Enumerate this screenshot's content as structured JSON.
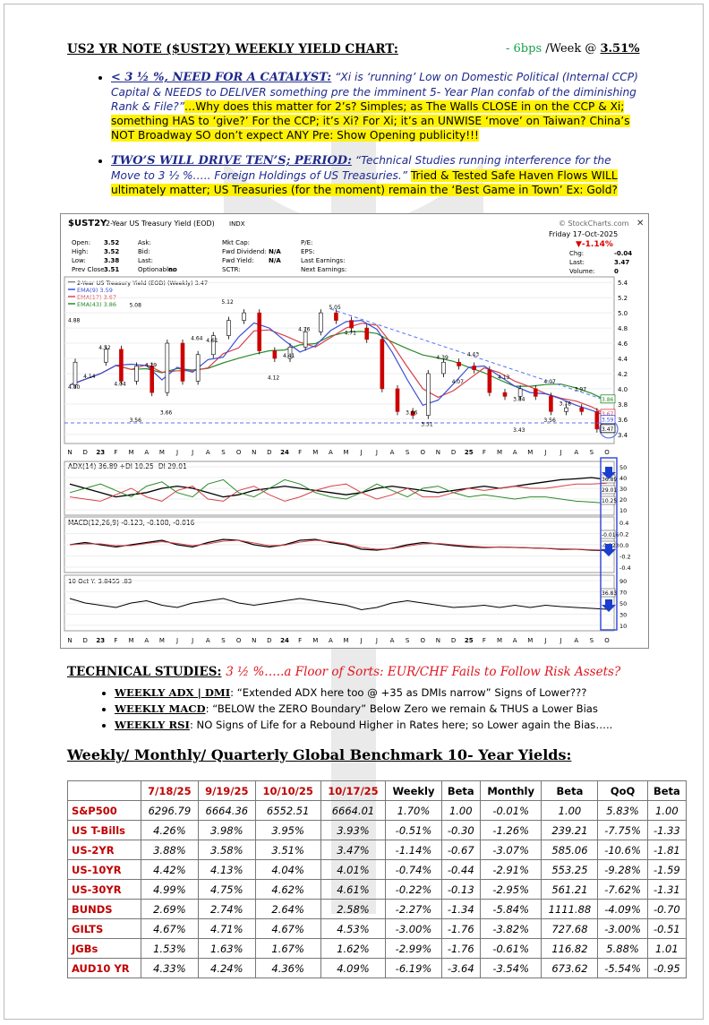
{
  "header": {
    "title": "US2 YR NOTE ($UST2Y) WEEKLY YIELD CHART:",
    "change": "- 6bps",
    "per_week": "/Week @",
    "level": "3.51%"
  },
  "bullets": [
    {
      "head": "< 3 ½ %, NEED FOR A CATALYST:",
      "body": "“Xi is ‘running’ Low on Domestic Political (Internal CCP) Capital & NEEDS to DELIVER something pre the imminent 5- Year Plan confab of the diminishing Rank & File?”",
      "highlight": "…Why does this matter for 2’s? Simples; as The Walls CLOSE in on the CCP & Xi; something HAS to ‘give?’ For the CCP; it’s Xi? For Xi; it’s an UNWISE ‘move’ on Taiwan? China’s NOT Broadway SO don’t expect ANY Pre: Show Opening publicity!!!"
    },
    {
      "head": "TWO’S WILL DRIVE TEN’S; PERIOD:",
      "body": "“Technical Studies running interference for the Move to 3 ½ %….. Foreign Holdings of US Treasuries.”",
      "highlight": "Tried & Tested Safe Haven Flows WILL ultimately matter; US Treasuries (for the moment) remain the ‘Best Game in Town’ Ex: Gold?"
    }
  ],
  "stockchart": {
    "symbol": "$UST2Y",
    "name": "2-Year US Treasury Yield (EOD)",
    "exchange": "INDX",
    "brand": "© StockCharts.com",
    "date": "Friday 17-Oct-2025",
    "pct_change": "▼-1.14%",
    "info_rows": [
      [
        "Open:",
        "3.52",
        "Ask:",
        "",
        "Mkt Cap:",
        "",
        "P/E:",
        ""
      ],
      [
        "High:",
        "3.52",
        "Bid:",
        "",
        "Fwd Dividend:",
        "N/A",
        "EPS:",
        ""
      ],
      [
        "Low:",
        "3.38",
        "Last:",
        "",
        "Fwd Yield:",
        "N/A",
        "Last Earnings:",
        ""
      ],
      [
        "Prev Close:",
        "3.51",
        "Optionable:",
        "no",
        "SCTR:",
        "",
        "Next Earnings:",
        ""
      ]
    ],
    "right_info": [
      [
        "Chg:",
        "-0.04"
      ],
      [
        "Last:",
        "3.47"
      ],
      [
        "Volume:",
        "0"
      ]
    ],
    "legend": [
      "2-Year US Treasury Yield (EOD) (Weekly) 3.47",
      "EMA(9) 3.59",
      "EMA(17) 3.67",
      "EMA(43) 3.86"
    ],
    "price_axis": [
      "5.4",
      "5.2",
      "5.0",
      "4.8",
      "4.6",
      "4.4",
      "4.2",
      "4.0",
      "3.8",
      "3.6",
      "3.4"
    ],
    "price_labels": [
      "5.08",
      "5.12",
      "4.88",
      "4.64",
      "4.52",
      "4.61",
      "4.29",
      "4.14",
      "4.04",
      "3.66",
      "3.56",
      "5.05",
      "4.76",
      "4.71",
      "4.41",
      "4.12",
      "4.39",
      "4.43",
      "4.07",
      "3.66",
      "3.51",
      "4.13",
      "3.84",
      "3.43",
      "3.56",
      "4.07",
      "3.97",
      "3.78",
      "4.00"
    ],
    "right_tags": [
      "3.86",
      "3.67",
      "3.59",
      "3.47"
    ],
    "x_labels": [
      "N",
      "D",
      "23",
      "F",
      "M",
      "A",
      "M",
      "J",
      "J",
      "A",
      "S",
      "O",
      "N",
      "D",
      "24",
      "F",
      "M",
      "A",
      "M",
      "J",
      "J",
      "A",
      "S",
      "O",
      "N",
      "D",
      "25",
      "F",
      "M",
      "A",
      "M",
      "J",
      "J",
      "A",
      "S",
      "O"
    ],
    "adx_label": "ADX(14) 36.89  +DI 10.25  -DI 29.01",
    "adx_axis": [
      "50",
      "40",
      "30",
      "20",
      "10"
    ],
    "adx_tags": [
      "36.89",
      "29.01",
      "10.25"
    ],
    "macd_label": "MACD(12,26,9) -0.123, -0.108, -0.016",
    "macd_axis": [
      "0.4",
      "0.2",
      "0.0",
      "-0.2",
      "-0.4"
    ],
    "macd_tags": [
      "-0.016",
      "-0.123"
    ],
    "rsi_label": "10 Oct Y: 3.8455 .83",
    "rsi_axis": [
      "90",
      "70",
      "50",
      "30",
      "10"
    ],
    "rsi_tags": [
      "36.83"
    ]
  },
  "technical": {
    "title": "TECHNICAL STUDIES:",
    "subtitle": "3 ½ %…..a Floor of Sorts: EUR/CHF Fails to Follow Risk Assets?",
    "items": [
      {
        "key": "WEEKLY ADX | DMI",
        "text": ": “Extended ADX here too @ +35 as DMIs narrow”    Signs of Lower???"
      },
      {
        "key": "WEEKLY MACD",
        "text": ": “BELOW the ZERO Boundary” Below Zero we remain & THUS a Lower Bias"
      },
      {
        "key": "WEEKLY RSI",
        "text": ": NO Signs of Life for a Rebound Higher in Rates here; so Lower again the Bias….."
      }
    ]
  },
  "table": {
    "title": "Weekly/ Monthly/ Quarterly Global Benchmark 10- Year Yields:",
    "headers": [
      "",
      "7/18/25",
      "9/19/25",
      "10/10/25",
      "10/17/25",
      "Weekly",
      "Beta",
      "Monthly",
      "Beta",
      "QoQ",
      "Beta"
    ],
    "rows": [
      [
        "S&P500",
        "6296.79",
        "6664.36",
        "6552.51",
        "6664.01",
        "1.70%",
        "1.00",
        "-0.01%",
        "1.00",
        "5.83%",
        "1.00"
      ],
      [
        "US T-Bills",
        "4.26%",
        "3.98%",
        "3.95%",
        "3.93%",
        "-0.51%",
        "-0.30",
        "-1.26%",
        "239.21",
        "-7.75%",
        "-1.33"
      ],
      [
        "US-2YR",
        "3.88%",
        "3.58%",
        "3.51%",
        "3.47%",
        "-1.14%",
        "-0.67",
        "-3.07%",
        "585.06",
        "-10.6%",
        "-1.81"
      ],
      [
        "US-10YR",
        "4.42%",
        "4.13%",
        "4.04%",
        "4.01%",
        "-0.74%",
        "-0.44",
        "-2.91%",
        "553.25",
        "-9.28%",
        "-1.59"
      ],
      [
        "US-30YR",
        "4.99%",
        "4.75%",
        "4.62%",
        "4.61%",
        "-0.22%",
        "-0.13",
        "-2.95%",
        "561.21",
        "-7.62%",
        "-1.31"
      ],
      [
        "BUNDS",
        "2.69%",
        "2.74%",
        "2.64%",
        "2.58%",
        "-2.27%",
        "-1.34",
        "-5.84%",
        "1111.88",
        "-4.09%",
        "-0.70"
      ],
      [
        "GILTS",
        "4.67%",
        "4.71%",
        "4.67%",
        "4.53%",
        "-3.00%",
        "-1.76",
        "-3.82%",
        "727.68",
        "-3.00%",
        "-0.51"
      ],
      [
        "JGBs",
        "1.53%",
        "1.63%",
        "1.67%",
        "1.62%",
        "-2.99%",
        "-1.76",
        "-0.61%",
        "116.82",
        "5.88%",
        "1.01"
      ],
      [
        "AUD10 YR",
        "4.33%",
        "4.24%",
        "4.36%",
        "4.09%",
        "-6.19%",
        "-3.64",
        "-3.54%",
        "673.62",
        "-5.54%",
        "-0.95"
      ]
    ]
  },
  "colors": {
    "price_line": "#000000",
    "ema9": "#3b4fd6",
    "ema17": "#d6404a",
    "ema43": "#2a8a2a",
    "trend": "#5577ee",
    "highlight": "#fff200",
    "title_red": "#e0141e",
    "row_red": "#c00000"
  }
}
